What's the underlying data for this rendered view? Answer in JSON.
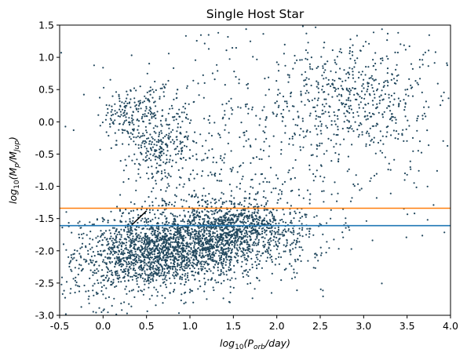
{
  "chart_data": {
    "type": "scatter",
    "title": "Single Host Star",
    "xlabel_base": "log",
    "xlabel_sub": "10",
    "xlabel_body": "(P",
    "xlabel_body_sub": "orb",
    "xlabel_end": "/day)",
    "ylabel_base": "log",
    "ylabel_sub": "10",
    "ylabel_body": "(M",
    "ylabel_p": "p",
    "ylabel_mid": "/M",
    "ylabel_jup": "Jup",
    "ylabel_end": ")",
    "xlim": [
      -0.5,
      4.0
    ],
    "ylim": [
      -3.0,
      1.5
    ],
    "xticks": [
      -0.5,
      0.0,
      0.5,
      1.0,
      1.5,
      2.0,
      2.5,
      3.0,
      3.5,
      4.0
    ],
    "xtick_labels": [
      "-0.5",
      "0.0",
      "0.5",
      "1.0",
      "1.5",
      "2.0",
      "2.5",
      "3.0",
      "3.5",
      "4.0"
    ],
    "yticks": [
      -3.0,
      -2.5,
      -2.0,
      -1.5,
      -1.0,
      -0.5,
      0.0,
      0.5,
      1.0,
      1.5
    ],
    "ytick_labels": [
      "-3.0",
      "-2.5",
      "-2.0",
      "-1.5",
      "-1.0",
      "-0.5",
      "0.0",
      "0.5",
      "1.0",
      "1.5"
    ],
    "grid": false,
    "marker_color": "#22485e",
    "horizontal_lines": [
      {
        "y": -1.34,
        "color": "#ff7f0e"
      },
      {
        "y": -1.61,
        "color": "#1f77b4"
      }
    ],
    "segment": {
      "x": [
        0.33,
        0.5
      ],
      "y": [
        -1.6,
        -1.38
      ],
      "color": "#000000"
    },
    "clusters": [
      {
        "cx": 0.55,
        "cy": -2.05,
        "sx": 0.35,
        "sy": 0.28,
        "n": 900
      },
      {
        "cx": 1.15,
        "cy": -1.85,
        "sx": 0.45,
        "sy": 0.32,
        "n": 1400
      },
      {
        "cx": 1.6,
        "cy": -1.6,
        "sx": 0.3,
        "sy": 0.2,
        "n": 400
      },
      {
        "cx": 0.65,
        "cy": -0.3,
        "sx": 0.18,
        "sy": 0.45,
        "n": 350
      },
      {
        "cx": 0.25,
        "cy": 0.1,
        "sx": 0.15,
        "sy": 0.2,
        "n": 120
      },
      {
        "cx": 2.95,
        "cy": 0.35,
        "sx": 0.45,
        "sy": 0.45,
        "n": 520
      },
      {
        "cx": 1.8,
        "cy": -0.5,
        "sx": 0.7,
        "sy": 0.8,
        "n": 380
      },
      {
        "cx": 0.0,
        "cy": -2.3,
        "sx": 0.3,
        "sy": 0.4,
        "n": 260
      },
      {
        "cx": 2.2,
        "cy": -1.9,
        "sx": 0.25,
        "sy": 0.4,
        "n": 80
      },
      {
        "cx": 1.7,
        "cy": 0.6,
        "sx": 1.1,
        "sy": 0.55,
        "n": 60
      },
      {
        "cx": 3.2,
        "cy": -1.2,
        "sx": 0.6,
        "sy": 0.5,
        "n": 40
      }
    ]
  }
}
